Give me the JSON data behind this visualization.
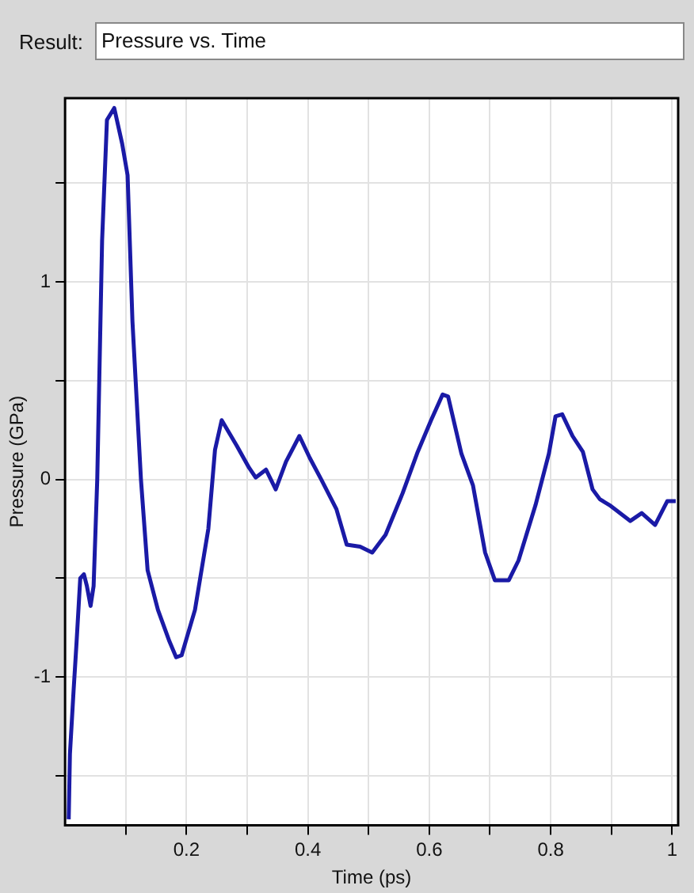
{
  "chart_data": {
    "type": "line",
    "title": "Pressure vs. Time",
    "annotations": [
      "Result:"
    ],
    "xlabel": "Time (ps)",
    "ylabel": "Pressure (GPa)",
    "x": [
      0.006,
      0.008,
      0.014,
      0.019,
      0.025,
      0.031,
      0.036,
      0.042,
      0.047,
      0.053,
      0.061,
      0.069,
      0.081,
      0.094,
      0.103,
      0.111,
      0.125,
      0.136,
      0.153,
      0.172,
      0.183,
      0.192,
      0.214,
      0.236,
      0.247,
      0.258,
      0.283,
      0.303,
      0.314,
      0.331,
      0.347,
      0.364,
      0.386,
      0.403,
      0.422,
      0.447,
      0.464,
      0.486,
      0.506,
      0.528,
      0.556,
      0.581,
      0.603,
      0.622,
      0.631,
      0.653,
      0.672,
      0.692,
      0.708,
      0.731,
      0.747,
      0.775,
      0.797,
      0.808,
      0.819,
      0.836,
      0.853,
      0.869,
      0.881,
      0.897,
      0.931,
      0.95,
      0.972,
      0.992,
      1.006
    ],
    "series": [
      {
        "color": "#1a1aa6",
        "values": [
          -1.72,
          -1.39,
          -1.07,
          -0.82,
          -0.5,
          -0.48,
          -0.54,
          -0.64,
          -0.54,
          0,
          1.21,
          1.82,
          1.88,
          1.7,
          1.54,
          0.8,
          0,
          -0.46,
          -0.66,
          -0.82,
          -0.9,
          -0.89,
          -0.66,
          -0.25,
          0.15,
          0.3,
          0.17,
          0.06,
          0.01,
          0.05,
          -0.05,
          0.09,
          0.22,
          0.11,
          0,
          -0.15,
          -0.33,
          -0.34,
          -0.37,
          -0.28,
          -0.07,
          0.14,
          0.3,
          0.43,
          0.42,
          0.13,
          -0.03,
          -0.37,
          -0.51,
          -0.51,
          -0.41,
          -0.13,
          0.13,
          0.32,
          0.33,
          0.22,
          0.14,
          -0.05,
          -0.1,
          -0.13,
          -0.21,
          -0.17,
          -0.23,
          -0.11,
          -0.11
        ]
      }
    ],
    "xlim": [
      0,
      1.01
    ],
    "xticks": [
      {
        "value": 0.1,
        "label": null
      },
      0.2,
      {
        "value": 0.3,
        "label": null
      },
      0.4,
      {
        "value": 0.5,
        "label": null
      },
      0.6,
      {
        "value": 0.7,
        "label": null
      },
      0.8,
      {
        "value": 0.9,
        "label": null
      },
      1
    ],
    "ylim": [
      -1.75,
      1.93
    ],
    "yticks": [
      {
        "value": -1.5,
        "label": null
      },
      -1,
      {
        "value": -0.5,
        "label": null
      },
      0,
      {
        "value": 0.5,
        "label": null
      },
      1,
      {
        "value": 1.5,
        "label": null
      }
    ],
    "grid": true,
    "legend": false,
    "marker": "none",
    "line_style": "solid"
  }
}
